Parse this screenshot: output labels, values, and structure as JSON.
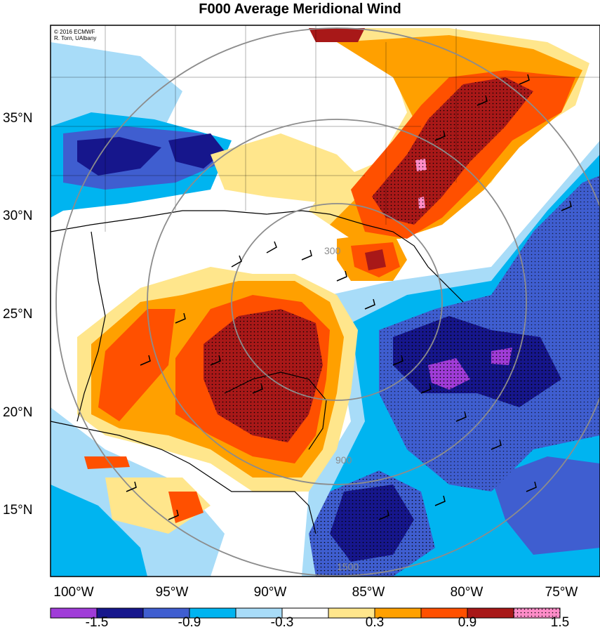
{
  "title": "F000 Average Meridional Wind",
  "credit": {
    "line1": "© 2016 ECMWF",
    "line2": "R. Torn, UAlbany"
  },
  "lat_labels": [
    "35°N",
    "30°N",
    "25°N",
    "20°N",
    "15°N"
  ],
  "lon_labels": [
    "100°W",
    "95°W",
    "90°W",
    "85°W",
    "80°W",
    "75°W"
  ],
  "colorbar": {
    "labels": [
      "-1.5",
      "-0.9",
      "-0.3",
      "0.3",
      "0.9",
      "1.5"
    ],
    "colors": [
      "#a03cd8",
      "#16168c",
      "#3f5ed0",
      "#00b4f0",
      "#a8dcf8",
      "#ffffff",
      "#ffe68c",
      "#ffa000",
      "#ff5000",
      "#a81818",
      "#ff8cc8"
    ]
  },
  "contour_labels": [
    "300",
    "900",
    "1500"
  ],
  "colors": {
    "border": "#000000",
    "contour": "#8c8c8c"
  }
}
